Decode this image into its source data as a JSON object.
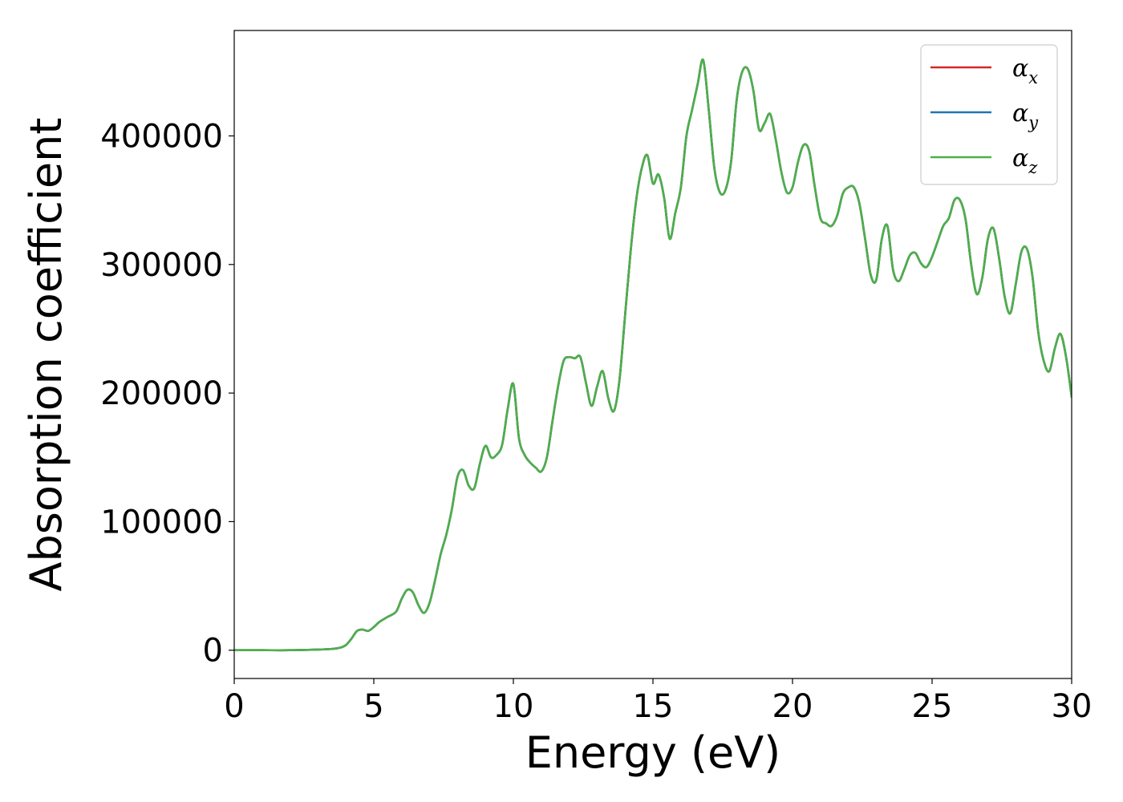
{
  "chart_data": {
    "type": "line",
    "title": "",
    "xlabel": "Energy (eV)",
    "ylabel": "Absorption coefficient",
    "xlim": [
      0,
      30
    ],
    "ylim": [
      -22000,
      482000
    ],
    "xticks": [
      0,
      5,
      10,
      15,
      20,
      25,
      30
    ],
    "yticks": [
      0,
      100000,
      200000,
      300000,
      400000
    ],
    "grid": false,
    "legend_position": "top-right",
    "x": [
      0,
      1,
      2,
      3,
      3.5,
      3.8,
      4.0,
      4.2,
      4.4,
      4.6,
      4.8,
      5.0,
      5.2,
      5.5,
      5.8,
      6.0,
      6.2,
      6.4,
      6.6,
      6.8,
      7.0,
      7.2,
      7.4,
      7.6,
      7.8,
      8.0,
      8.2,
      8.4,
      8.6,
      8.8,
      9.0,
      9.2,
      9.4,
      9.6,
      9.8,
      10.0,
      10.2,
      10.4,
      10.6,
      10.8,
      11.0,
      11.2,
      11.4,
      11.6,
      11.8,
      12.0,
      12.2,
      12.4,
      12.6,
      12.8,
      13.0,
      13.2,
      13.4,
      13.6,
      13.8,
      14.0,
      14.2,
      14.4,
      14.6,
      14.8,
      15.0,
      15.2,
      15.4,
      15.6,
      15.8,
      16.0,
      16.2,
      16.4,
      16.6,
      16.8,
      17.0,
      17.2,
      17.4,
      17.6,
      17.8,
      18.0,
      18.2,
      18.4,
      18.6,
      18.8,
      19.0,
      19.2,
      19.4,
      19.6,
      19.8,
      20.0,
      20.2,
      20.4,
      20.6,
      20.8,
      21.0,
      21.2,
      21.4,
      21.6,
      21.8,
      22.0,
      22.2,
      22.4,
      22.6,
      22.8,
      23.0,
      23.2,
      23.4,
      23.6,
      23.8,
      24.0,
      24.2,
      24.4,
      24.6,
      24.8,
      25.0,
      25.2,
      25.4,
      25.6,
      25.8,
      26.0,
      26.2,
      26.4,
      26.6,
      26.8,
      27.0,
      27.2,
      27.4,
      27.6,
      27.8,
      28.0,
      28.2,
      28.4,
      28.6,
      28.8,
      29.0,
      29.2,
      29.4,
      29.6,
      29.8,
      30.0
    ],
    "series": [
      {
        "name": "α_x",
        "color": "#d62728",
        "values": [
          0,
          0,
          0,
          500,
          1000,
          2000,
          4000,
          9000,
          15000,
          16000,
          15000,
          18000,
          22000,
          26000,
          30000,
          40000,
          47000,
          45000,
          35000,
          29000,
          37000,
          55000,
          75000,
          90000,
          110000,
          135000,
          140000,
          128000,
          126000,
          145000,
          159000,
          150000,
          152000,
          160000,
          188000,
          207000,
          165000,
          152000,
          146000,
          142000,
          139000,
          150000,
          178000,
          205000,
          225000,
          228000,
          227000,
          228000,
          208000,
          190000,
          205000,
          217000,
          196000,
          186000,
          210000,
          260000,
          310000,
          350000,
          375000,
          385000,
          363000,
          370000,
          352000,
          320000,
          340000,
          360000,
          400000,
          420000,
          440000,
          459000,
          420000,
          375000,
          356000,
          358000,
          380000,
          428000,
          450000,
          452000,
          435000,
          405000,
          410000,
          417000,
          397000,
          372000,
          356000,
          360000,
          380000,
          393000,
          388000,
          360000,
          336000,
          332000,
          330000,
          338000,
          355000,
          360000,
          360000,
          347000,
          320000,
          292000,
          288000,
          320000,
          330000,
          296000,
          287000,
          296000,
          307000,
          309000,
          301000,
          298000,
          306000,
          318000,
          330000,
          336000,
          350000,
          350000,
          335000,
          300000,
          277000,
          290000,
          320000,
          328000,
          305000,
          275000,
          262000,
          285000,
          310000,
          312000,
          290000,
          248000,
          225000,
          217000,
          235000,
          246000,
          228000,
          197000
        ]
      },
      {
        "name": "α_y",
        "color": "#1f77b4",
        "values": [
          0,
          0,
          0,
          500,
          1000,
          2000,
          4000,
          9000,
          15000,
          16000,
          15000,
          18000,
          22000,
          26000,
          30000,
          40000,
          47000,
          45000,
          35000,
          29000,
          37000,
          55000,
          75000,
          90000,
          110000,
          135000,
          140000,
          128000,
          126000,
          145000,
          159000,
          150000,
          152000,
          160000,
          188000,
          207000,
          165000,
          152000,
          146000,
          142000,
          139000,
          150000,
          178000,
          205000,
          225000,
          228000,
          227000,
          228000,
          208000,
          190000,
          205000,
          217000,
          196000,
          186000,
          210000,
          260000,
          310000,
          350000,
          375000,
          385000,
          363000,
          370000,
          352000,
          320000,
          340000,
          360000,
          400000,
          420000,
          440000,
          459000,
          420000,
          375000,
          356000,
          358000,
          380000,
          428000,
          450000,
          452000,
          435000,
          405000,
          410000,
          417000,
          397000,
          372000,
          356000,
          360000,
          380000,
          393000,
          388000,
          360000,
          336000,
          332000,
          330000,
          338000,
          355000,
          360000,
          360000,
          347000,
          320000,
          292000,
          288000,
          320000,
          330000,
          296000,
          287000,
          296000,
          307000,
          309000,
          301000,
          298000,
          306000,
          318000,
          330000,
          336000,
          350000,
          350000,
          335000,
          300000,
          277000,
          290000,
          320000,
          328000,
          305000,
          275000,
          262000,
          285000,
          310000,
          312000,
          290000,
          248000,
          225000,
          217000,
          235000,
          246000,
          228000,
          197000
        ]
      },
      {
        "name": "α_z",
        "color": "#4daf4a",
        "values": [
          0,
          0,
          0,
          500,
          1000,
          2000,
          4000,
          9000,
          15000,
          16000,
          15000,
          18000,
          22000,
          26000,
          30000,
          40000,
          47000,
          45000,
          35000,
          29000,
          37000,
          55000,
          75000,
          90000,
          110000,
          135000,
          140000,
          128000,
          126000,
          145000,
          159000,
          150000,
          152000,
          160000,
          188000,
          207000,
          165000,
          152000,
          146000,
          142000,
          139000,
          150000,
          178000,
          205000,
          225000,
          228000,
          227000,
          228000,
          208000,
          190000,
          205000,
          217000,
          196000,
          186000,
          210000,
          260000,
          310000,
          350000,
          375000,
          385000,
          363000,
          370000,
          352000,
          320000,
          340000,
          360000,
          400000,
          420000,
          440000,
          459000,
          420000,
          375000,
          356000,
          358000,
          380000,
          428000,
          450000,
          452000,
          435000,
          405000,
          410000,
          417000,
          397000,
          372000,
          356000,
          360000,
          380000,
          393000,
          388000,
          360000,
          336000,
          332000,
          330000,
          338000,
          355000,
          360000,
          360000,
          347000,
          320000,
          292000,
          288000,
          320000,
          330000,
          296000,
          287000,
          296000,
          307000,
          309000,
          301000,
          298000,
          306000,
          318000,
          330000,
          336000,
          350000,
          350000,
          335000,
          300000,
          277000,
          290000,
          320000,
          328000,
          305000,
          275000,
          262000,
          285000,
          310000,
          312000,
          290000,
          248000,
          225000,
          217000,
          235000,
          246000,
          228000,
          197000
        ]
      }
    ]
  }
}
